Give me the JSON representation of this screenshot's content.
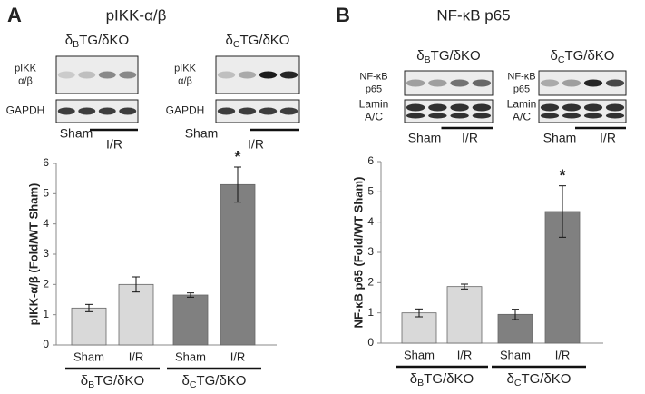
{
  "chart_data": [
    {
      "type": "bar",
      "panel_label": "A",
      "title": "pIKK-α/β",
      "ylabel": "pIKK-α/β (Fold/WT Sham)",
      "categories": [
        "Sham",
        "I/R",
        "Sham",
        "I/R"
      ],
      "values": [
        1.22,
        2.0,
        1.65,
        5.3
      ],
      "errors": [
        0.12,
        0.25,
        0.07,
        0.58
      ],
      "colors": [
        "#d9d9d9",
        "#d9d9d9",
        "#808080",
        "#808080"
      ],
      "markers": [
        null,
        null,
        null,
        "*"
      ],
      "groups": [
        "δBTG/δKO",
        "δCTG/δKO"
      ],
      "ylim": [
        0,
        6
      ],
      "yticks": [
        0,
        1,
        2,
        3,
        4,
        5,
        6
      ],
      "blots": [
        {
          "group": "δBTG/δKO",
          "rows": [
            [
              "pIKK",
              "α/β"
            ],
            [
              "GAPDH"
            ]
          ],
          "lanes": [
            "Sham",
            "I/R"
          ]
        },
        {
          "group": "δCTG/δKO",
          "rows": [
            [
              "pIKK",
              "α/β"
            ],
            [
              "GAPDH"
            ]
          ],
          "lanes": [
            "Sham",
            "I/R"
          ]
        }
      ]
    },
    {
      "type": "bar",
      "panel_label": "B",
      "title": "NF-κB p65",
      "ylabel": "NF-κB p65 (Fold/WT Sham)",
      "categories": [
        "Sham",
        "I/R",
        "Sham",
        "I/R"
      ],
      "values": [
        1.0,
        1.87,
        0.95,
        4.35
      ],
      "errors": [
        0.13,
        0.08,
        0.17,
        0.85
      ],
      "colors": [
        "#d9d9d9",
        "#d9d9d9",
        "#808080",
        "#808080"
      ],
      "markers": [
        null,
        null,
        null,
        "*"
      ],
      "groups": [
        "δBTG/δKO",
        "δCTG/δKO"
      ],
      "ylim": [
        0,
        6
      ],
      "yticks": [
        0,
        1,
        2,
        3,
        4,
        5,
        6
      ],
      "blots": [
        {
          "group": "δBTG/δKO",
          "rows": [
            [
              "NF-κB",
              "p65"
            ],
            [
              "Lamin",
              "A/C"
            ]
          ],
          "lanes": [
            "Sham",
            "I/R"
          ]
        },
        {
          "group": "δCTG/δKO",
          "rows": [
            [
              "NF-κB",
              "p65"
            ],
            [
              "Lamin",
              "A/C"
            ]
          ],
          "lanes": [
            "Sham",
            "I/R"
          ]
        }
      ]
    }
  ]
}
